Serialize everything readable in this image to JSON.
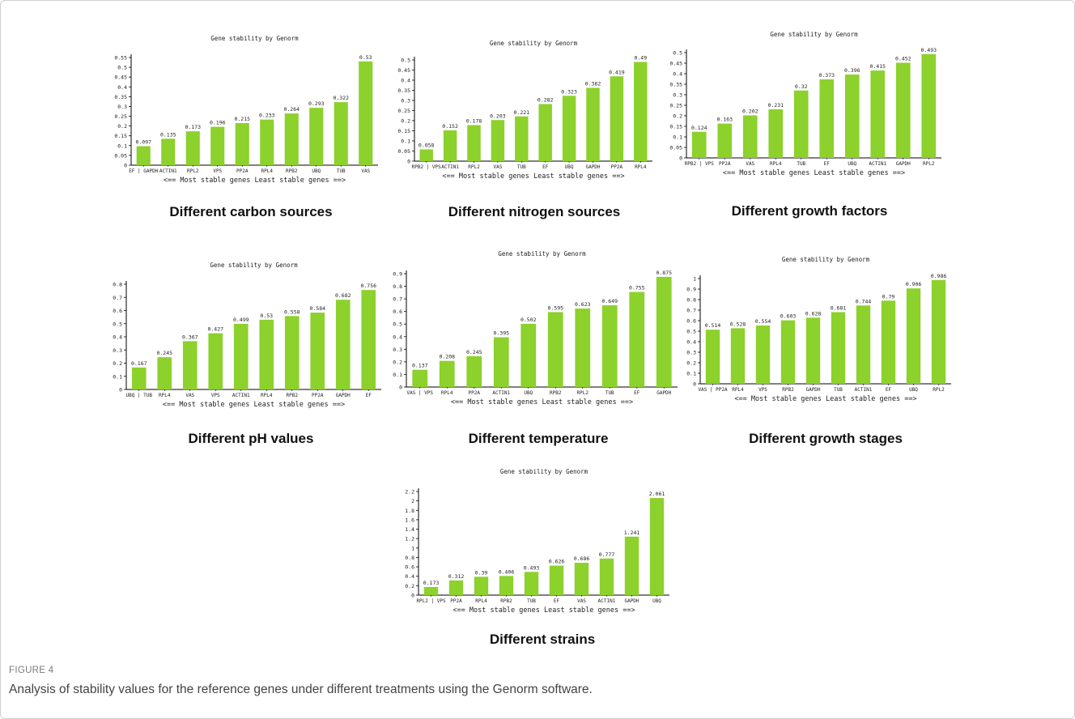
{
  "colors": {
    "bar": "#8cd12c",
    "axis": "#000000",
    "text": "#111111"
  },
  "figure": {
    "label": "FIGURE 4",
    "caption": "Analysis of stability values for the reference genes under different treatments using the Genorm software."
  },
  "chart_data": [
    {
      "type": "bar",
      "title": "Gene stability by Genorm",
      "panel_title": "Different carbon sources",
      "xlabel": "<== Most stable genes    Least stable genes ==>",
      "categories": [
        "EF | GAPDH",
        "ACTIN1",
        "RPL2",
        "VPS",
        "PP2A",
        "RPL4",
        "RPB2",
        "UBQ",
        "TUB",
        "VAS"
      ],
      "values": [
        0.097,
        0.135,
        0.173,
        0.196,
        0.215,
        0.233,
        0.264,
        0.293,
        0.322,
        0.53
      ],
      "ylim": [
        0,
        0.55
      ],
      "yticks": [
        "0",
        "0.05",
        "0.1",
        "0.15",
        "0.2",
        "0.25",
        "0.3",
        "0.35",
        "0.4",
        "0.45",
        "0.5",
        "0.55"
      ]
    },
    {
      "type": "bar",
      "title": "Gene stability by Genorm",
      "panel_title": "Different nitrogen sources",
      "xlabel": "<== Most stable genes    Least stable genes ==>",
      "categories": [
        "RPB2 | VPS",
        "ACTIN1",
        "RPL2",
        "VAS",
        "TUB",
        "EF",
        "UBQ",
        "GAPDH",
        "PP2A",
        "RPL4"
      ],
      "values": [
        0.058,
        0.152,
        0.178,
        0.203,
        0.221,
        0.282,
        0.323,
        0.362,
        0.419,
        0.49
      ],
      "ylim": [
        0,
        0.5
      ],
      "yticks": [
        "0",
        "0.05",
        "0.1",
        "0.15",
        "0.2",
        "0.25",
        "0.3",
        "0.35",
        "0.4",
        "0.45",
        "0.5"
      ]
    },
    {
      "type": "bar",
      "title": "Gene stability by Genorm",
      "panel_title": "Different growth factors",
      "xlabel": "<== Most stable genes    Least stable genes ==>",
      "categories": [
        "RPB2 | VPS",
        "PP2A",
        "VAS",
        "RPL4",
        "TUB",
        "EF",
        "UBQ",
        "ACTIN1",
        "GAPDH",
        "RPL2"
      ],
      "values": [
        0.124,
        0.163,
        0.202,
        0.231,
        0.32,
        0.373,
        0.396,
        0.415,
        0.452,
        0.493
      ],
      "ylim": [
        0,
        0.5
      ],
      "yticks": [
        "0",
        "0.05",
        "0.1",
        "0.15",
        "0.2",
        "0.25",
        "0.3",
        "0.35",
        "0.4",
        "0.45",
        "0.5"
      ]
    },
    {
      "type": "bar",
      "title": "Gene stability by Genorm",
      "panel_title": "Different pH values",
      "xlabel": "<== Most stable genes    Least stable genes ==>",
      "categories": [
        "UBQ | TUB",
        "RPL4",
        "VAS",
        "VPS",
        "ACTIN1",
        "RPL4",
        "RPB2",
        "PP2A",
        "GAPDH",
        "EF"
      ],
      "values": [
        0.167,
        0.245,
        0.367,
        0.427,
        0.499,
        0.53,
        0.558,
        0.584,
        0.682,
        0.756
      ],
      "ylim": [
        0,
        0.8
      ],
      "yticks": [
        "0",
        "0.1",
        "0.2",
        "0.3",
        "0.4",
        "0.5",
        "0.6",
        "0.7",
        "0.8"
      ]
    },
    {
      "type": "bar",
      "title": "Gene stability by Genorm",
      "panel_title": "Different temperature",
      "xlabel": "<== Most stable genes    Least stable genes ==>",
      "categories": [
        "VAS | VPS",
        "RPL4",
        "PP2A",
        "ACTIN1",
        "UBQ",
        "RPB2",
        "RPL2",
        "TUB",
        "EF",
        "GAPDH"
      ],
      "values": [
        0.137,
        0.208,
        0.245,
        0.395,
        0.502,
        0.595,
        0.623,
        0.649,
        0.755,
        0.875
      ],
      "ylim": [
        0,
        0.9
      ],
      "yticks": [
        "0",
        "0.1",
        "0.2",
        "0.3",
        "0.4",
        "0.5",
        "0.6",
        "0.7",
        "0.8",
        "0.9"
      ]
    },
    {
      "type": "bar",
      "title": "Gene stability by Genorm",
      "panel_title": "Different growth stages",
      "xlabel": "<== Most stable genes    Least stable genes ==>",
      "categories": [
        "VAS | PP2A",
        "RPL4",
        "VPS",
        "RPB2",
        "GAPDH",
        "TUB",
        "ACTIN1",
        "EF",
        "UBQ",
        "RPL2"
      ],
      "values": [
        0.514,
        0.528,
        0.554,
        0.603,
        0.628,
        0.681,
        0.744,
        0.79,
        0.906,
        0.986
      ],
      "ylim": [
        0,
        1.0
      ],
      "yticks": [
        "0",
        "0.1",
        "0.2",
        "0.3",
        "0.4",
        "0.5",
        "0.6",
        "0.7",
        "0.8",
        "0.9",
        "1"
      ]
    },
    {
      "type": "bar",
      "title": "Gene stability by Genorm",
      "panel_title": "Different strains",
      "xlabel": "<== Most stable genes    Least stable genes ==>",
      "categories": [
        "RPL2 | VPS",
        "PP2A",
        "RPL4",
        "RPB2",
        "TUB",
        "EF",
        "VAS",
        "ACTIN1",
        "GAPDH",
        "UBQ"
      ],
      "values": [
        0.173,
        0.312,
        0.39,
        0.406,
        0.493,
        0.626,
        0.686,
        0.777,
        1.241,
        2.061
      ],
      "ylim": [
        0,
        2.2
      ],
      "yticks": [
        "0",
        "0.2",
        "0.4",
        "0.6",
        "0.8",
        "1",
        "1.2",
        "1.4",
        "1.6",
        "1.8",
        "2",
        "2.2"
      ]
    }
  ]
}
